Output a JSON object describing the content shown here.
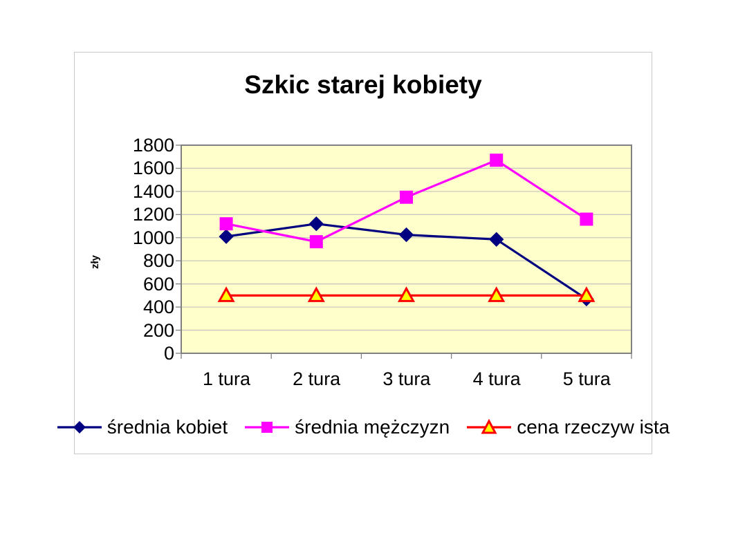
{
  "chart_data": {
    "type": "line",
    "title": "Szkic starej kobiety",
    "categories": [
      "1 tura",
      "2 tura",
      "3 tura",
      "4 tura",
      "5 tura"
    ],
    "series": [
      {
        "name": "średnia kobiet",
        "color": "#000080",
        "marker": "diamond",
        "marker_fill": "#000080",
        "values": [
          1010,
          1120,
          1025,
          985,
          470
        ]
      },
      {
        "name": "średnia mężczyzn",
        "color": "#ff00ff",
        "marker": "square",
        "marker_fill": "#ff00ff",
        "values": [
          1120,
          965,
          1350,
          1670,
          1160
        ]
      },
      {
        "name": "cena rzeczyw ista",
        "color": "#ff0000",
        "marker": "triangle",
        "marker_fill": "#ffff00",
        "values": [
          500,
          500,
          500,
          500,
          500
        ]
      }
    ],
    "y_axis": {
      "title": "zły",
      "min": 0,
      "max": 1800,
      "step": 200,
      "tick_labels": [
        "1800",
        "1600",
        "1400",
        "1200",
        "1000",
        "800",
        "600",
        "400",
        "200",
        "0"
      ]
    },
    "x_axis": {
      "label": ""
    },
    "legend_position": "bottom",
    "grid": true,
    "colors": {
      "plot_background": "#ffffcc",
      "gridline": "#c8c8c0",
      "plot_border": "#808080",
      "frame_border": "#c9c9c9",
      "text": "#000000"
    }
  }
}
